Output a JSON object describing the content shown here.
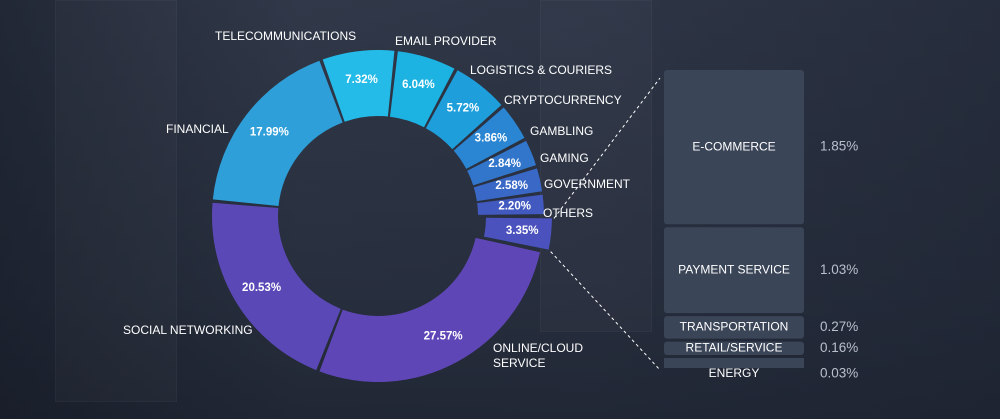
{
  "chart_data": {
    "type": "pie",
    "donut": true,
    "slices": [
      {
        "label": "ONLINE/CLOUD SERVICE",
        "value": 27.57,
        "value_label": "27.57%",
        "color": "#5f46b6"
      },
      {
        "label": "SOCIAL NETWORKING",
        "value": 20.53,
        "value_label": "20.53%",
        "color": "#5b48b7"
      },
      {
        "label": "FINANCIAL",
        "value": 17.99,
        "value_label": "17.99%",
        "color": "#2f9fd9"
      },
      {
        "label": "TELECOMMUNICATIONS",
        "value": 7.32,
        "value_label": "7.32%",
        "color": "#24bbe8"
      },
      {
        "label": "EMAIL PROVIDER",
        "value": 6.04,
        "value_label": "6.04%",
        "color": "#1cb3e2"
      },
      {
        "label": "LOGISTICS & COURIERS",
        "value": 5.72,
        "value_label": "5.72%",
        "color": "#1e9fdb"
      },
      {
        "label": "CRYPTOCURRENCY",
        "value": 3.86,
        "value_label": "3.86%",
        "color": "#2a86d2"
      },
      {
        "label": "GAMBLING",
        "value": 2.84,
        "value_label": "2.84%",
        "color": "#3276cc"
      },
      {
        "label": "GAMING",
        "value": 2.58,
        "value_label": "2.58%",
        "color": "#3a68c6"
      },
      {
        "label": "GOVERNMENT",
        "value": 2.2,
        "value_label": "2.20%",
        "color": "#425ac0"
      },
      {
        "label": "OTHERS",
        "value": 3.35,
        "value_label": "3.35%",
        "color": "#4b52bd"
      }
    ],
    "breakdown": {
      "of": "OTHERS",
      "items": [
        {
          "label": "E-COMMERCE",
          "value": 1.85,
          "value_label": "1.85%"
        },
        {
          "label": "PAYMENT SERVICE",
          "value": 1.03,
          "value_label": "1.03%"
        },
        {
          "label": "TRANSPORTATION",
          "value": 0.27,
          "value_label": "0.27%"
        },
        {
          "label": "RETAIL/SERVICE",
          "value": 0.16,
          "value_label": "0.16%"
        },
        {
          "label": "ENERGY",
          "value": 0.03,
          "value_label": "0.03%"
        }
      ]
    }
  }
}
